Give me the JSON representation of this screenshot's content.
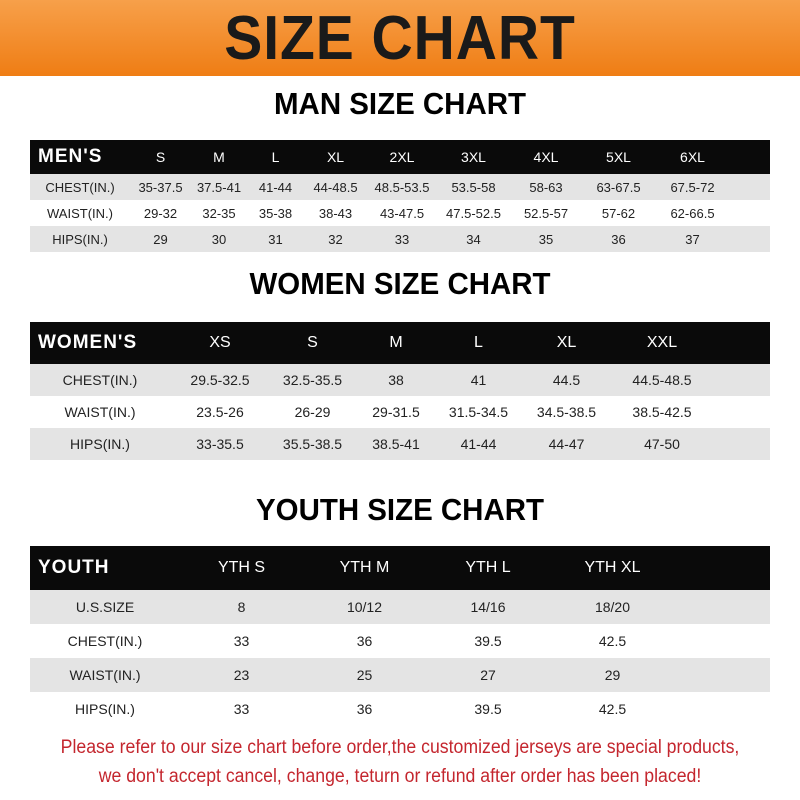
{
  "title": "SIZE CHART",
  "men": {
    "title": "MAN SIZE CHART",
    "header": [
      "MEN'S",
      "S",
      "M",
      "L",
      "XL",
      "2XL",
      "3XL",
      "4XL",
      "5XL",
      "6XL"
    ],
    "rows": [
      [
        "CHEST(IN.)",
        "35-37.5",
        "37.5-41",
        "41-44",
        "44-48.5",
        "48.5-53.5",
        "53.5-58",
        "58-63",
        "63-67.5",
        "67.5-72"
      ],
      [
        "WAIST(IN.)",
        "29-32",
        "32-35",
        "35-38",
        "38-43",
        "43-47.5",
        "47.5-52.5",
        "52.5-57",
        "57-62",
        "62-66.5"
      ],
      [
        "HIPS(IN.)",
        "29",
        "30",
        "31",
        "32",
        "33",
        "34",
        "35",
        "36",
        "37"
      ]
    ]
  },
  "women": {
    "title": "WOMEN SIZE CHART",
    "header": [
      "WOMEN'S",
      "XS",
      "S",
      "M",
      "L",
      "XL",
      "XXL"
    ],
    "rows": [
      [
        "CHEST(IN.)",
        "29.5-32.5",
        "32.5-35.5",
        "38",
        "41",
        "44.5",
        "44.5-48.5"
      ],
      [
        "WAIST(IN.)",
        "23.5-26",
        "26-29",
        "29-31.5",
        "31.5-34.5",
        "34.5-38.5",
        "38.5-42.5"
      ],
      [
        "HIPS(IN.)",
        "33-35.5",
        "35.5-38.5",
        "38.5-41",
        "41-44",
        "44-47",
        "47-50"
      ]
    ]
  },
  "youth": {
    "title": "YOUTH SIZE CHART",
    "header": [
      "YOUTH",
      "YTH S",
      "YTH M",
      "YTH L",
      "YTH XL"
    ],
    "rows": [
      [
        "U.S.SIZE",
        "8",
        "10/12",
        "14/16",
        "18/20"
      ],
      [
        "CHEST(IN.)",
        "33",
        "36",
        "39.5",
        "42.5"
      ],
      [
        "WAIST(IN.)",
        "23",
        "25",
        "27",
        "29"
      ],
      [
        "HIPS(IN.)",
        "33",
        "36",
        "39.5",
        "42.5"
      ]
    ]
  },
  "note": [
    "Please refer to our size chart before order,the customized jerseys are special products,",
    "we don't accept cancel, change, teturn or refund after order has been placed!"
  ],
  "colors": {
    "banner": "#ef7d14",
    "header_row": "#0a0a0a",
    "stripe": "#e4e4e4",
    "note": "#c4262e"
  }
}
